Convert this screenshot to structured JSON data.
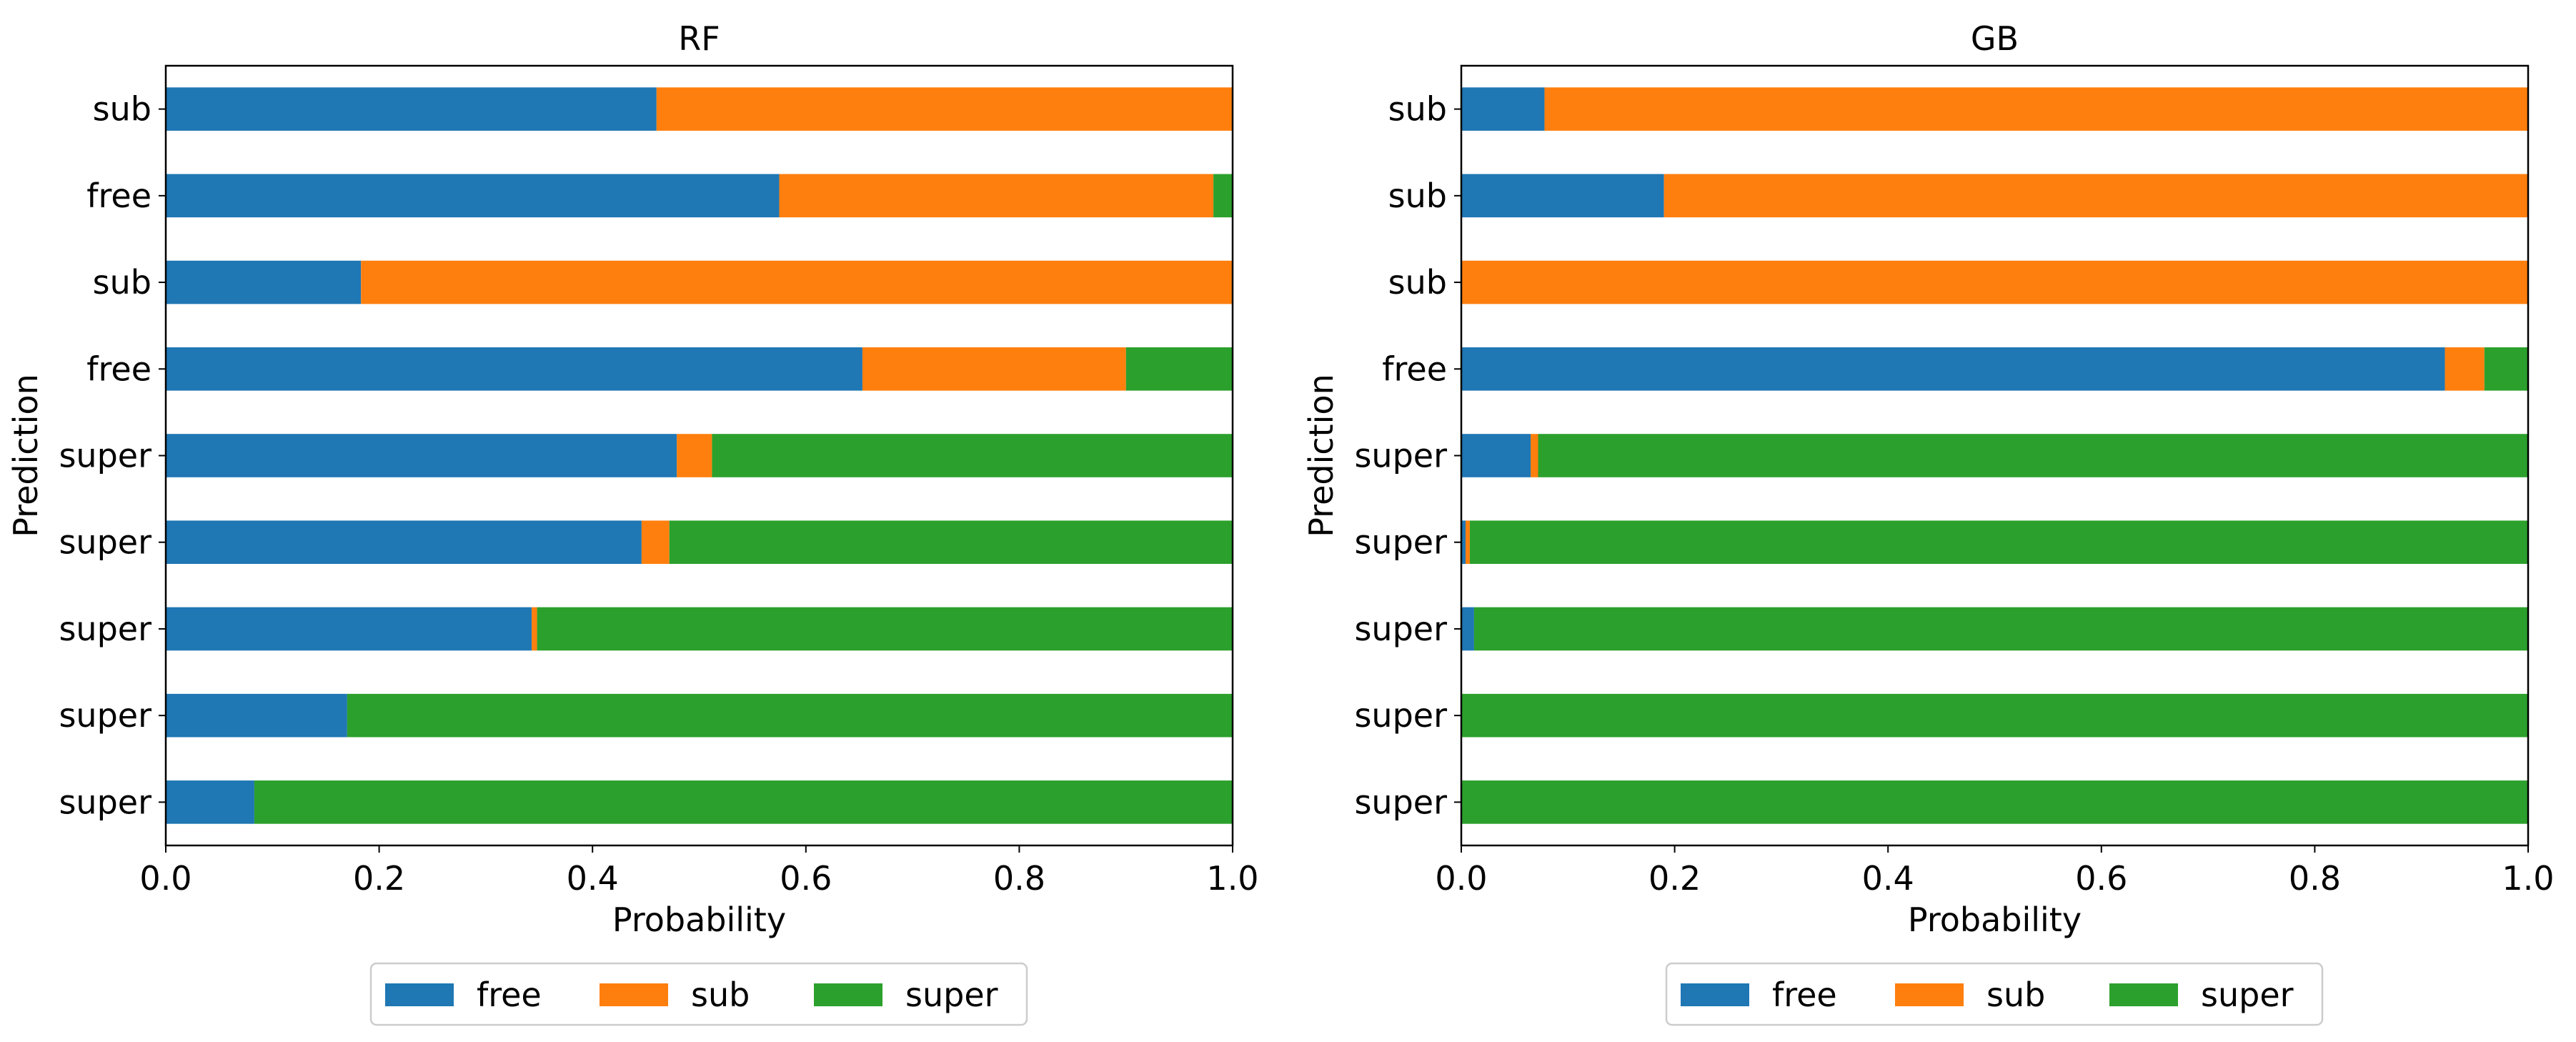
{
  "chart_data": [
    {
      "type": "bar",
      "orientation": "horizontal",
      "stacked": true,
      "title": "RF",
      "xlabel": "Probability",
      "ylabel": "Prediction",
      "xlim": [
        0,
        1
      ],
      "xticks": [
        "0.0",
        "0.2",
        "0.4",
        "0.6",
        "0.8",
        "1.0"
      ],
      "categories": [
        "sub",
        "free",
        "sub",
        "free",
        "super",
        "super",
        "super",
        "super",
        "super"
      ],
      "series": [
        {
          "name": "free",
          "color": "#1f77b4",
          "values": [
            0.46,
            0.575,
            0.183,
            0.653,
            0.479,
            0.446,
            0.343,
            0.17,
            0.083
          ]
        },
        {
          "name": "sub",
          "color": "#ff7f0e",
          "values": [
            0.54,
            0.407,
            0.817,
            0.247,
            0.033,
            0.026,
            0.005,
            0.0,
            0.0
          ]
        },
        {
          "name": "super",
          "color": "#2ca02c",
          "values": [
            0.0,
            0.018,
            0.0,
            0.1,
            0.488,
            0.528,
            0.652,
            0.83,
            0.917
          ]
        }
      ],
      "legend": {
        "position": "bottom-center",
        "entries": [
          "free",
          "sub",
          "super"
        ]
      }
    },
    {
      "type": "bar",
      "orientation": "horizontal",
      "stacked": true,
      "title": "GB",
      "xlabel": "Probability",
      "ylabel": "Prediction",
      "xlim": [
        0,
        1
      ],
      "xticks": [
        "0.0",
        "0.2",
        "0.4",
        "0.6",
        "0.8",
        "1.0"
      ],
      "categories": [
        "sub",
        "sub",
        "sub",
        "free",
        "super",
        "super",
        "super",
        "super",
        "super"
      ],
      "series": [
        {
          "name": "free",
          "color": "#1f77b4",
          "values": [
            0.078,
            0.19,
            0.0,
            0.922,
            0.065,
            0.004,
            0.012,
            0.0,
            0.0
          ]
        },
        {
          "name": "sub",
          "color": "#ff7f0e",
          "values": [
            0.922,
            0.81,
            1.0,
            0.037,
            0.007,
            0.004,
            0.0,
            0.0,
            0.0
          ]
        },
        {
          "name": "super",
          "color": "#2ca02c",
          "values": [
            0.0,
            0.0,
            0.0,
            0.041,
            0.928,
            0.992,
            0.988,
            1.0,
            1.0
          ]
        }
      ],
      "legend": {
        "position": "bottom-center",
        "entries": [
          "free",
          "sub",
          "super"
        ]
      }
    }
  ]
}
